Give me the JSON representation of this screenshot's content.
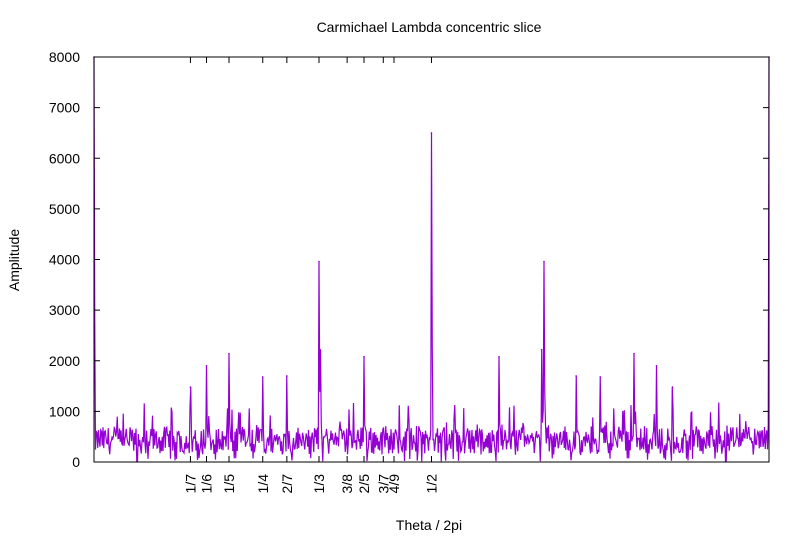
{
  "chart_data": {
    "type": "line",
    "title": "Carmichael Lambda concentric slice",
    "xlabel": "Theta / 2pi",
    "ylabel": "Amplitude",
    "xlim": [
      0,
      1
    ],
    "ylim": [
      0,
      8000
    ],
    "y_ticks": [
      0,
      1000,
      2000,
      3000,
      4000,
      5000,
      6000,
      7000,
      8000
    ],
    "x_ticks": [
      {
        "value": 0.142857,
        "label": "1/7"
      },
      {
        "value": 0.166667,
        "label": "1/6"
      },
      {
        "value": 0.2,
        "label": "1/5"
      },
      {
        "value": 0.25,
        "label": "1/4"
      },
      {
        "value": 0.285714,
        "label": "2/7"
      },
      {
        "value": 0.333333,
        "label": "1/3"
      },
      {
        "value": 0.375,
        "label": "3/8"
      },
      {
        "value": 0.4,
        "label": "2/5"
      },
      {
        "value": 0.428571,
        "label": "3/7"
      },
      {
        "value": 0.444444,
        "label": "4/9"
      },
      {
        "value": 0.5,
        "label": "1/2"
      }
    ],
    "grid": false,
    "legend": "none",
    "series": [
      {
        "color": "#9400d3",
        "peaks": [
          {
            "x": 0.0,
            "y": 8000
          },
          {
            "x": 0.142857,
            "y": 1480
          },
          {
            "x": 0.166667,
            "y": 1900
          },
          {
            "x": 0.2,
            "y": 2140
          },
          {
            "x": 0.25,
            "y": 1680
          },
          {
            "x": 0.285714,
            "y": 1700
          },
          {
            "x": 0.333333,
            "y": 3960
          },
          {
            "x": 0.335,
            "y": 2220
          },
          {
            "x": 0.4,
            "y": 2080
          },
          {
            "x": 0.5,
            "y": 6500
          },
          {
            "x": 0.6,
            "y": 2080
          },
          {
            "x": 0.663,
            "y": 2220
          },
          {
            "x": 0.666667,
            "y": 3960
          },
          {
            "x": 0.714286,
            "y": 1700
          },
          {
            "x": 0.75,
            "y": 1680
          },
          {
            "x": 0.8,
            "y": 2140
          },
          {
            "x": 0.833333,
            "y": 1900
          },
          {
            "x": 0.857143,
            "y": 1480
          },
          {
            "x": 1.0,
            "y": 8000
          }
        ],
        "baseline_range": [
          0,
          1200
        ]
      }
    ]
  }
}
